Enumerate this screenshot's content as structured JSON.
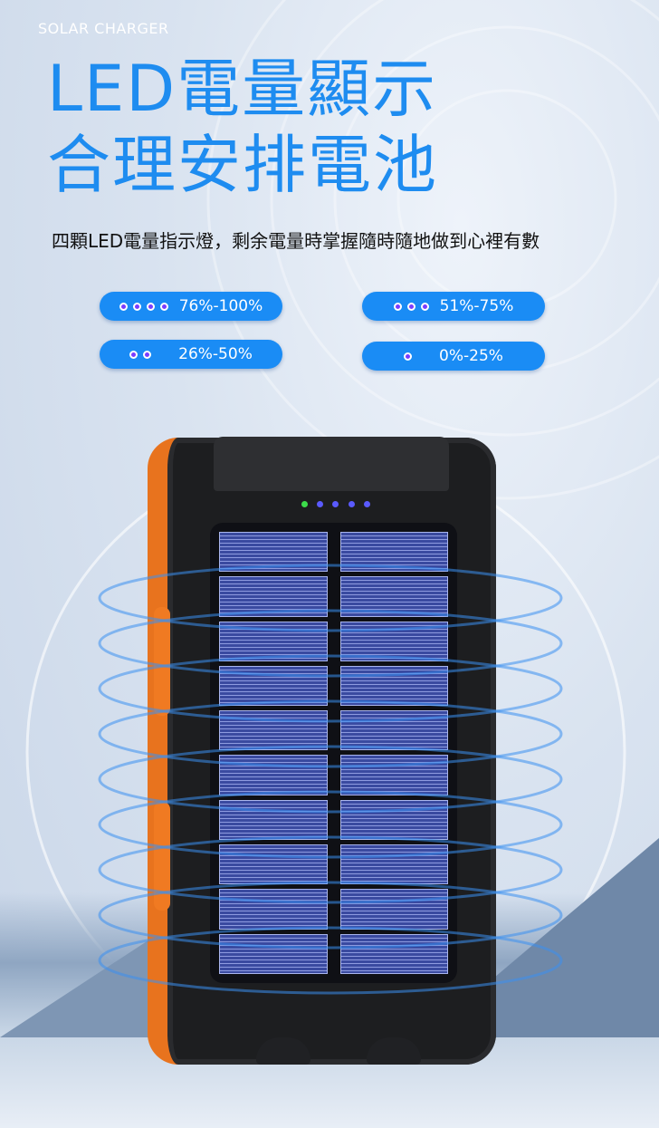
{
  "header": {
    "eyebrow": "SOLAR CHARGER",
    "title_line1": "LED電量顯示",
    "title_line2": "合理安排電池"
  },
  "description": "四顆LED電量指示燈，剩余電量時掌握隨時隨地做到心裡有數",
  "levels": [
    {
      "label": "76%-100%",
      "dots": 4
    },
    {
      "label": "51%-75%",
      "dots": 3
    },
    {
      "label": "26%-50%",
      "dots": 2
    },
    {
      "label": "0%-25%",
      "dots": 1
    }
  ],
  "colors": {
    "accent": "#1e8cf0",
    "pill": "#1a8cf5",
    "led": "#7a3cff",
    "device_trim": "#e8731e"
  }
}
